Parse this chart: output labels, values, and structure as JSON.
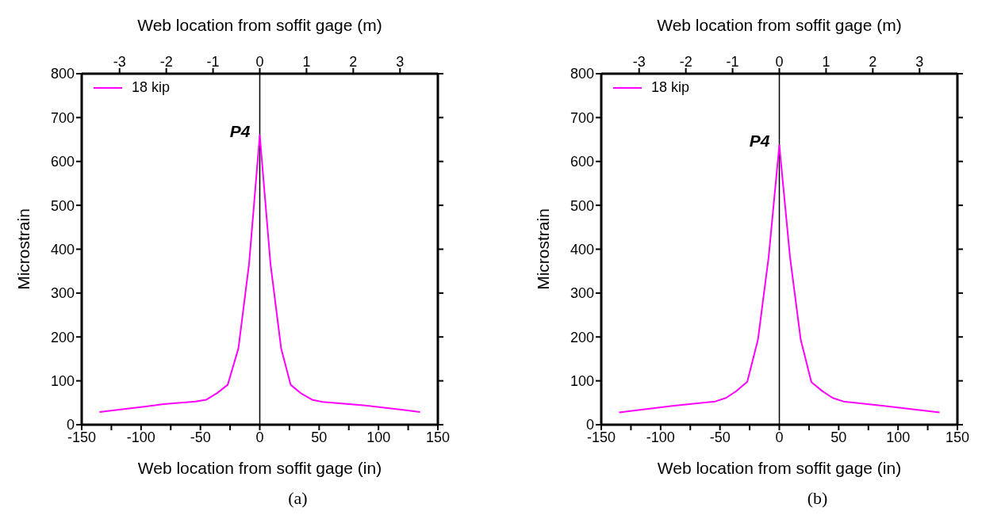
{
  "chart_data": [
    {
      "type": "line",
      "xlabel": "Web location from soffit gage (in)",
      "x2label": "Web location from soffit gage (m)",
      "ylabel": "Microstrain",
      "x": [
        -135,
        -92,
        -81,
        -54,
        -45,
        -36,
        -27,
        -18,
        -9,
        0,
        9,
        18,
        26,
        35,
        44,
        53,
        89,
        135
      ],
      "series": [
        {
          "name": "18 kip",
          "color": "#ff00ff",
          "values": [
            29,
            43,
            47,
            53,
            57,
            72,
            91,
            174,
            367,
            660,
            367,
            174,
            91,
            71,
            57,
            52,
            44,
            29
          ]
        }
      ],
      "xlim": [
        -150,
        150
      ],
      "xticks": [
        -150,
        {
          "value": -125,
          "label": null
        },
        -100,
        {
          "value": -75,
          "label": null
        },
        -50,
        {
          "value": -25,
          "label": null
        },
        0,
        {
          "value": 25,
          "label": null
        },
        50,
        {
          "value": 75,
          "label": null
        },
        100,
        {
          "value": 125,
          "label": null
        },
        150
      ],
      "x2lim": [
        -3.81,
        3.81
      ],
      "x2ticks": [
        -3,
        -2,
        -1,
        0,
        1,
        2,
        3
      ],
      "ylim": [
        0,
        800
      ],
      "yticks": [
        0,
        100,
        200,
        300,
        400,
        500,
        600,
        700,
        800
      ],
      "ref_lines": [
        {
          "axis": "x",
          "value": 0,
          "color": "#000000"
        }
      ],
      "annotations": [
        {
          "text": "P4",
          "x": 0,
          "y": 660
        },
        "(a)"
      ],
      "legend": "top left",
      "grid": false,
      "marker": "none",
      "line_style": "solid"
    },
    {
      "type": "line",
      "xlabel": "Web location from soffit gage (in)",
      "x2label": "Web location from soffit gage (m)",
      "ylabel": "Microstrain",
      "x": [
        -135,
        -90,
        -54,
        -45,
        -36,
        -27,
        -18,
        -9,
        0,
        9,
        18,
        27,
        36,
        45,
        54,
        91,
        135
      ],
      "series": [
        {
          "name": "18 kip",
          "color": "#ff00ff",
          "values": [
            28,
            43,
            53,
            61,
            77,
            98,
            194,
            382,
            637,
            382,
            194,
            97,
            77,
            61,
            53,
            42,
            28
          ]
        }
      ],
      "xlim": [
        -150,
        150
      ],
      "xticks": [
        -150,
        {
          "value": -125,
          "label": null
        },
        -100,
        {
          "value": -75,
          "label": null
        },
        -50,
        {
          "value": -25,
          "label": null
        },
        0,
        {
          "value": 25,
          "label": null
        },
        50,
        {
          "value": 75,
          "label": null
        },
        100,
        {
          "value": 125,
          "label": null
        },
        150
      ],
      "x2lim": [
        -3.81,
        3.81
      ],
      "x2ticks": [
        -3,
        -2,
        -1,
        0,
        1,
        2,
        3
      ],
      "ylim": [
        0,
        800
      ],
      "yticks": [
        0,
        100,
        200,
        300,
        400,
        500,
        600,
        700,
        800
      ],
      "ref_lines": [
        {
          "axis": "x",
          "value": 0,
          "color": "#000000"
        }
      ],
      "annotations": [
        {
          "text": "P4",
          "x": 0,
          "y": 637
        },
        "(b)"
      ],
      "legend": "top left",
      "grid": false,
      "marker": "none",
      "line_style": "solid"
    }
  ]
}
